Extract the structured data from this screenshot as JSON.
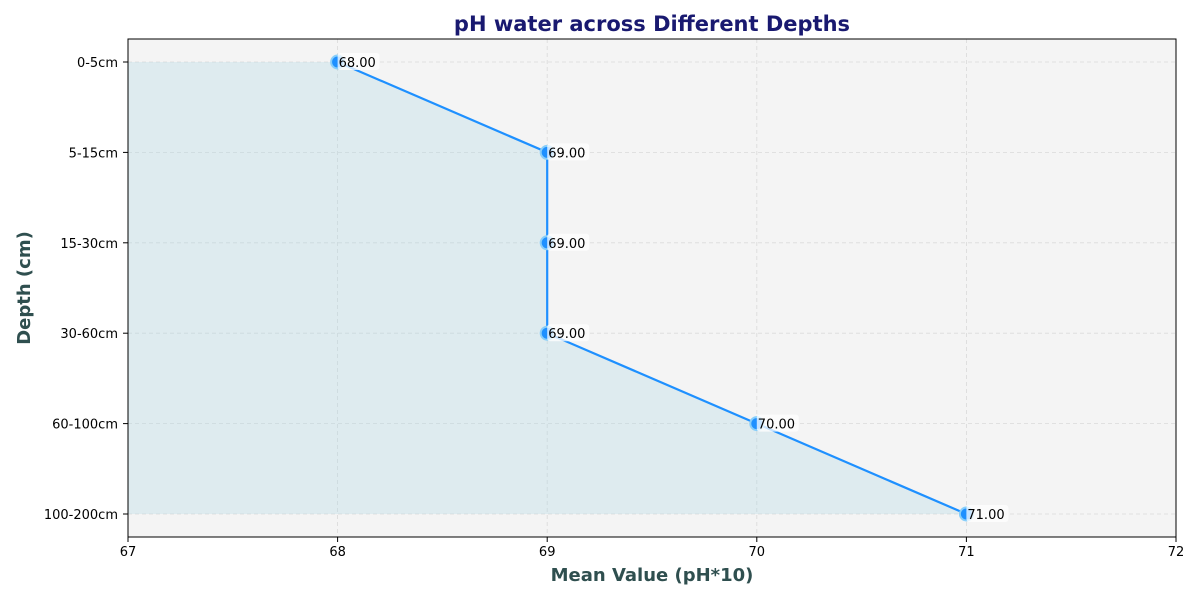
{
  "chart_data": {
    "type": "line",
    "title": "pH water across Different Depths",
    "xlabel": "Mean Value (pH*10)",
    "ylabel": "Depth (cm)",
    "xlim": [
      67,
      72
    ],
    "xticks": [
      "67",
      "68",
      "69",
      "70",
      "71",
      "72"
    ],
    "categories": [
      "0-5cm",
      "5-15cm",
      "15-30cm",
      "30-60cm",
      "60-100cm",
      "100-200cm"
    ],
    "values": [
      68,
      69,
      69,
      69,
      70,
      71
    ],
    "value_labels": [
      "68.00",
      "69.00",
      "69.00",
      "69.00",
      "70.00",
      "71.00"
    ],
    "grid": true,
    "fill_area": true,
    "colors": {
      "line": "#1e90ff",
      "marker": "#1e90ff",
      "marker_edge": "#87cefa",
      "fill": "#add8e6",
      "plot_bg": "#f4f4f4",
      "title": "#191970",
      "axis_label": "#2f4f4f"
    }
  }
}
